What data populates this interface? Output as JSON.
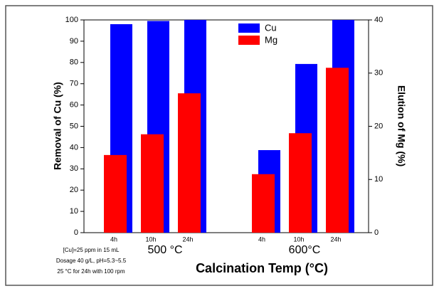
{
  "chart_data": {
    "type": "bar",
    "categories": [
      "4h",
      "10h",
      "24h",
      null,
      "4h",
      "10h",
      "24h"
    ],
    "series": [
      {
        "name": "Cu",
        "color": "#0000ff",
        "values": [
          98,
          99.5,
          100,
          null,
          38.8,
          79.3,
          100
        ]
      },
      {
        "name": "Mg",
        "color": "#ff0000",
        "axis": "y2",
        "values": [
          14.6,
          18.5,
          26.2,
          null,
          11.0,
          18.7,
          31.0
        ]
      }
    ],
    "ylim": [
      0,
      100
    ],
    "yticks": [
      0,
      10,
      20,
      30,
      40,
      50,
      60,
      70,
      80,
      90,
      100
    ],
    "y2lim": [
      0,
      40
    ],
    "y2ticks": [
      0,
      10,
      20,
      30,
      40
    ],
    "ylabel": "Removal of Cu (%)",
    "y2label": "Elution of Mg (%)",
    "xlabel": "Calcination Temp (°C)",
    "group_labels": [
      "500 °C",
      "600°C"
    ],
    "notes": [
      "[Cu]=25 ppm in 15 mL",
      "Dosage 40 g/L, pH=5.3~5.5",
      "25 °C for 24h with 100 rpm"
    ],
    "legend": "top-center"
  }
}
